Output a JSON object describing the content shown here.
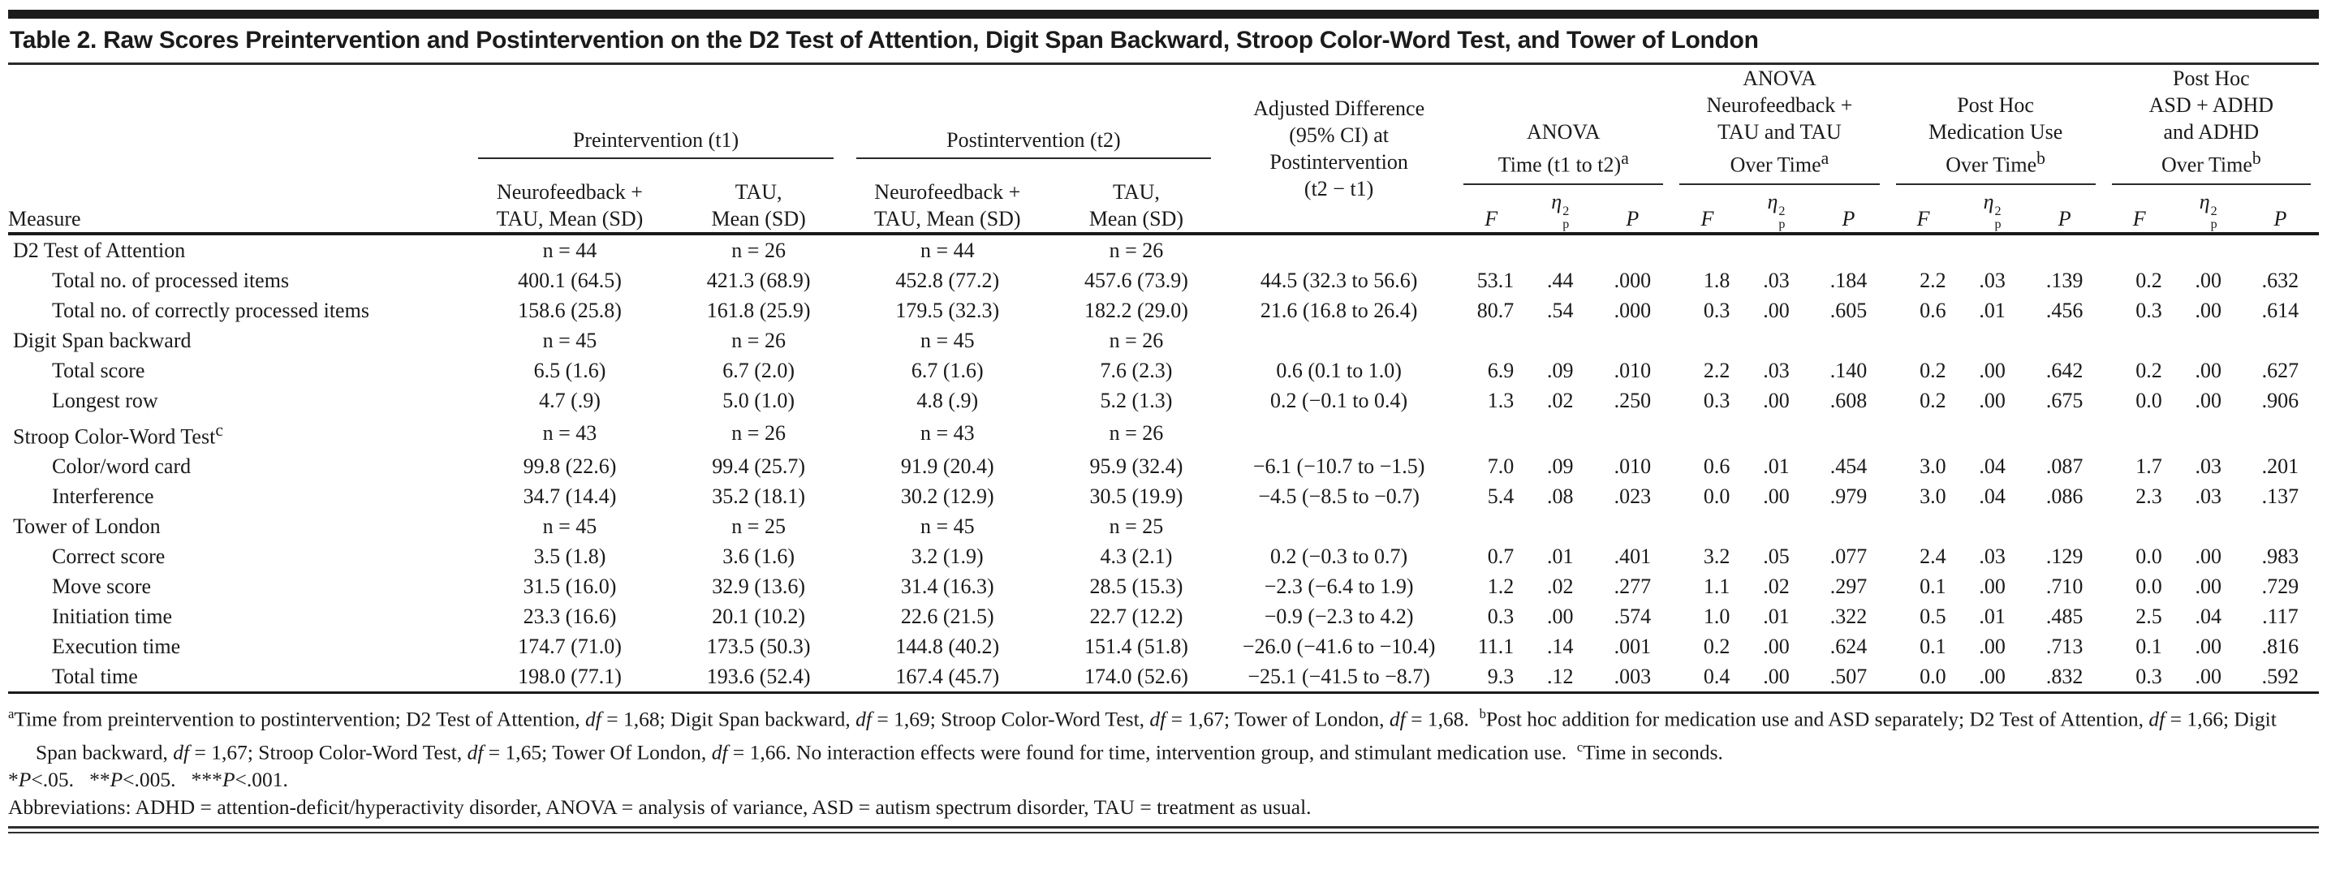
{
  "title": "Table 2. Raw Scores Preintervention and Postintervention on the D2 Test of Attention, Digit Span Backward, Stroop Color-Word Test, and Tower of London",
  "header": {
    "measure": "Measure",
    "pre_group": "Preintervention (t1)",
    "post_group": "Postintervention (t2)",
    "mean_nfb": [
      "Neurofeedback +",
      "TAU, Mean (SD)"
    ],
    "mean_tau": [
      "TAU,",
      "Mean (SD)"
    ],
    "adj": [
      "Adjusted Difference",
      "(95% CI) at",
      "Postintervention",
      "(t2 − t1)"
    ],
    "stat_groups": [
      {
        "lines": [
          "ANOVA",
          "Time (t1 to t2)"
        ],
        "sup": "a"
      },
      {
        "lines": [
          "ANOVA",
          "Neurofeedback +",
          "TAU and TAU",
          "Over Time"
        ],
        "sup": "a"
      },
      {
        "lines": [
          "Post Hoc",
          "Medication Use",
          "Over Time"
        ],
        "sup": "b"
      },
      {
        "lines": [
          "Post Hoc",
          "ASD + ADHD",
          "and ADHD",
          "Over Time"
        ],
        "sup": "b"
      }
    ],
    "stat_cols": {
      "f": "F",
      "eta": "η",
      "eta_sup": "2",
      "eta_sub": "p",
      "p": "P"
    }
  },
  "rows": [
    {
      "label": "D2 Test of Attention",
      "label_sup": "",
      "indent": false,
      "cells": [
        "n = 44",
        "n = 26",
        "n = 44",
        "n = 26",
        "",
        "",
        "",
        "",
        "",
        "",
        "",
        "",
        "",
        "",
        "",
        "",
        ""
      ]
    },
    {
      "label": "Total no. of processed items",
      "label_sup": "",
      "indent": true,
      "cells": [
        "400.1 (64.5)",
        "421.3 (68.9)",
        "452.8 (77.2)",
        "457.6 (73.9)",
        "44.5 (32.3 to 56.6)",
        "53.1",
        ".44",
        ".000",
        "1.8",
        ".03",
        ".184",
        "2.2",
        ".03",
        ".139",
        "0.2",
        ".00",
        ".632"
      ]
    },
    {
      "label": "Total no. of correctly processed items",
      "label_sup": "",
      "indent": true,
      "cells": [
        "158.6 (25.8)",
        "161.8 (25.9)",
        "179.5 (32.3)",
        "182.2 (29.0)",
        "21.6 (16.8 to 26.4)",
        "80.7",
        ".54",
        ".000",
        "0.3",
        ".00",
        ".605",
        "0.6",
        ".01",
        ".456",
        "0.3",
        ".00",
        ".614"
      ]
    },
    {
      "label": "Digit Span backward",
      "label_sup": "",
      "indent": false,
      "cells": [
        "n = 45",
        "n = 26",
        "n = 45",
        "n = 26",
        "",
        "",
        "",
        "",
        "",
        "",
        "",
        "",
        "",
        "",
        "",
        "",
        ""
      ]
    },
    {
      "label": "Total score",
      "label_sup": "",
      "indent": true,
      "cells": [
        "6.5 (1.6)",
        "6.7 (2.0)",
        "6.7 (1.6)",
        "7.6 (2.3)",
        "0.6 (0.1 to 1.0)",
        "6.9",
        ".09",
        ".010",
        "2.2",
        ".03",
        ".140",
        "0.2",
        ".00",
        ".642",
        "0.2",
        ".00",
        ".627"
      ]
    },
    {
      "label": "Longest row",
      "label_sup": "",
      "indent": true,
      "cells": [
        "4.7 (.9)",
        "5.0 (1.0)",
        "4.8 (.9)",
        "5.2 (1.3)",
        "0.2 (−0.1 to 0.4)",
        "1.3",
        ".02",
        ".250",
        "0.3",
        ".00",
        ".608",
        "0.2",
        ".00",
        ".675",
        "0.0",
        ".00",
        ".906"
      ]
    },
    {
      "label": "Stroop Color-Word Test",
      "label_sup": "c",
      "indent": false,
      "cells": [
        "n = 43",
        "n = 26",
        "n = 43",
        "n = 26",
        "",
        "",
        "",
        "",
        "",
        "",
        "",
        "",
        "",
        "",
        "",
        "",
        ""
      ]
    },
    {
      "label": "Color/word card",
      "label_sup": "",
      "indent": true,
      "cells": [
        "99.8 (22.6)",
        "99.4 (25.7)",
        "91.9 (20.4)",
        "95.9 (32.4)",
        "−6.1 (−10.7 to −1.5)",
        "7.0",
        ".09",
        ".010",
        "0.6",
        ".01",
        ".454",
        "3.0",
        ".04",
        ".087",
        "1.7",
        ".03",
        ".201"
      ]
    },
    {
      "label": "Interference",
      "label_sup": "",
      "indent": true,
      "cells": [
        "34.7 (14.4)",
        "35.2 (18.1)",
        "30.2 (12.9)",
        "30.5 (19.9)",
        "−4.5 (−8.5 to −0.7)",
        "5.4",
        ".08",
        ".023",
        "0.0",
        ".00",
        ".979",
        "3.0",
        ".04",
        ".086",
        "2.3",
        ".03",
        ".137"
      ]
    },
    {
      "label": "Tower of London",
      "label_sup": "",
      "indent": false,
      "cells": [
        "n = 45",
        "n = 25",
        "n = 45",
        "n = 25",
        "",
        "",
        "",
        "",
        "",
        "",
        "",
        "",
        "",
        "",
        "",
        "",
        ""
      ]
    },
    {
      "label": "Correct score",
      "label_sup": "",
      "indent": true,
      "cells": [
        "3.5 (1.8)",
        "3.6 (1.6)",
        "3.2 (1.9)",
        "4.3 (2.1)",
        "0.2 (−0.3 to 0.7)",
        "0.7",
        ".01",
        ".401",
        "3.2",
        ".05",
        ".077",
        "2.4",
        ".03",
        ".129",
        "0.0",
        ".00",
        ".983"
      ]
    },
    {
      "label": "Move score",
      "label_sup": "",
      "indent": true,
      "cells": [
        "31.5 (16.0)",
        "32.9 (13.6)",
        "31.4 (16.3)",
        "28.5 (15.3)",
        "−2.3 (−6.4 to 1.9)",
        "1.2",
        ".02",
        ".277",
        "1.1",
        ".02",
        ".297",
        "0.1",
        ".00",
        ".710",
        "0.0",
        ".00",
        ".729"
      ]
    },
    {
      "label": "Initiation time",
      "label_sup": "",
      "indent": true,
      "cells": [
        "23.3 (16.6)",
        "20.1 (10.2)",
        "22.6 (21.5)",
        "22.7 (12.2)",
        "−0.9 (−2.3 to 4.2)",
        "0.3",
        ".00",
        ".574",
        "1.0",
        ".01",
        ".322",
        "0.5",
        ".01",
        ".485",
        "2.5",
        ".04",
        ".117"
      ]
    },
    {
      "label": "Execution time",
      "label_sup": "",
      "indent": true,
      "cells": [
        "174.7 (71.0)",
        "173.5 (50.3)",
        "144.8 (40.2)",
        "151.4 (51.8)",
        "−26.0 (−41.6 to −10.4)",
        "11.1",
        ".14",
        ".001",
        "0.2",
        ".00",
        ".624",
        "0.1",
        ".00",
        ".713",
        "0.1",
        ".00",
        ".816"
      ]
    },
    {
      "label": "Total time",
      "label_sup": "",
      "indent": true,
      "cells": [
        "198.0 (77.1)",
        "193.6 (52.4)",
        "167.4 (45.7)",
        "174.0 (52.6)",
        "−25.1 (−41.5 to −8.7)",
        "9.3",
        ".12",
        ".003",
        "0.4",
        ".00",
        ".507",
        "0.0",
        ".00",
        ".832",
        "0.3",
        ".00",
        ".592"
      ]
    }
  ],
  "footnotes": {
    "note": [
      {
        "sup": "a"
      },
      {
        "t": "Time from preintervention to postintervention; D2 Test of Attention, "
      },
      {
        "i": "df"
      },
      {
        "t": " = 1,68; Digit Span backward, "
      },
      {
        "i": "df"
      },
      {
        "t": " = 1,69; Stroop Color-Word Test, "
      },
      {
        "i": "df"
      },
      {
        "t": " = 1,67; Tower of London, "
      },
      {
        "i": "df"
      },
      {
        "t": " = 1,68.  "
      },
      {
        "sup": "b"
      },
      {
        "t": "Post hoc addition for medication use and ASD separately; D2 Test of Attention, "
      },
      {
        "i": "df"
      },
      {
        "t": " = 1,66; Digit Span backward, "
      },
      {
        "i": "df"
      },
      {
        "t": " = 1,67; Stroop Color-Word Test, "
      },
      {
        "i": "df"
      },
      {
        "t": " = 1,65; Tower Of London, "
      },
      {
        "i": "df"
      },
      {
        "t": " = 1,66. No interaction effects were found for time, intervention group, and stimulant medication use.  "
      },
      {
        "sup": "c"
      },
      {
        "t": "Time in seconds."
      }
    ],
    "sig": [
      {
        "t": "*"
      },
      {
        "i": "P"
      },
      {
        "t": "<.05.   **"
      },
      {
        "i": "P"
      },
      {
        "t": "<.005.   ***"
      },
      {
        "i": "P"
      },
      {
        "t": "<.001."
      }
    ],
    "abbrev": "Abbreviations: ADHD = attention-deficit/hyperactivity disorder, ANOVA = analysis of variance, ASD = autism spectrum disorder, TAU = treatment as usual."
  }
}
